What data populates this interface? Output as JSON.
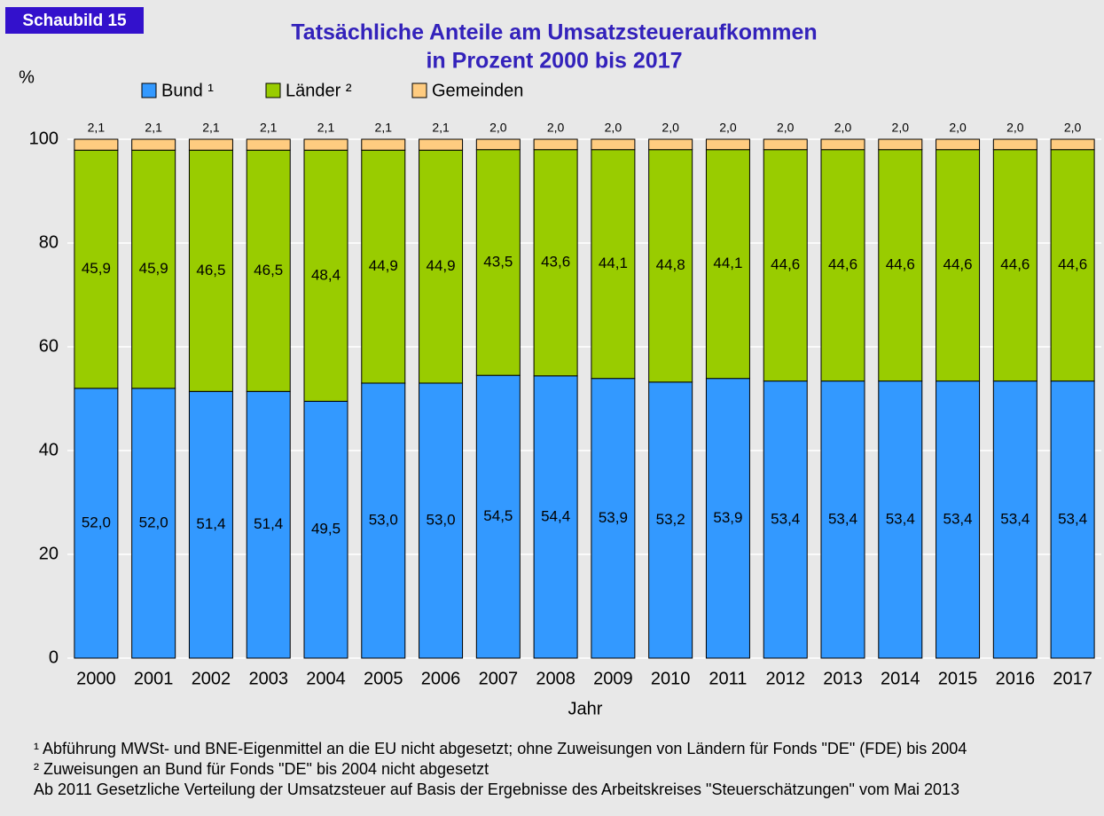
{
  "chart_data": {
    "type": "stacked_bar",
    "badge": "Schaubild 15",
    "title_lines": [
      "Tatsächliche Anteile am Umsatzsteueraufkommen",
      "in Prozent 2000 bis 2017"
    ],
    "y_label": "%",
    "x_label": "Jahr",
    "categories": [
      "2000",
      "2001",
      "2002",
      "2003",
      "2004",
      "2005",
      "2006",
      "2007",
      "2008",
      "2009",
      "2010",
      "2011",
      "2012",
      "2013",
      "2014",
      "2015",
      "2016",
      "2017"
    ],
    "series": [
      {
        "name": "Bund ¹",
        "color": "#3399ff",
        "values": [
          52.0,
          52.0,
          51.4,
          51.4,
          49.5,
          53.0,
          53.0,
          54.5,
          54.4,
          53.9,
          53.2,
          53.9,
          53.4,
          53.4,
          53.4,
          53.4,
          53.4,
          53.4
        ],
        "value_labels": [
          "52,0",
          "52,0",
          "51,4",
          "51,4",
          "49,5",
          "53,0",
          "53,0",
          "54,5",
          "54,4",
          "53,9",
          "53,2",
          "53,9",
          "53,4",
          "53,4",
          "53,4",
          "53,4",
          "53,4",
          "53,4"
        ]
      },
      {
        "name": "Länder ²",
        "color": "#99cc00",
        "values": [
          45.9,
          45.9,
          46.5,
          46.5,
          48.4,
          44.9,
          44.9,
          43.5,
          43.6,
          44.1,
          44.8,
          44.1,
          44.6,
          44.6,
          44.6,
          44.6,
          44.6,
          44.6
        ],
        "value_labels": [
          "45,9",
          "45,9",
          "46,5",
          "46,5",
          "48,4",
          "44,9",
          "44,9",
          "43,5",
          "43,6",
          "44,1",
          "44,8",
          "44,1",
          "44,6",
          "44,6",
          "44,6",
          "44,6",
          "44,6",
          "44,6"
        ]
      },
      {
        "name": "Gemeinden",
        "color": "#ffcc80",
        "values": [
          2.1,
          2.1,
          2.1,
          2.1,
          2.1,
          2.1,
          2.1,
          2.0,
          2.0,
          2.0,
          2.0,
          2.0,
          2.0,
          2.0,
          2.0,
          2.0,
          2.0,
          2.0
        ],
        "value_labels": [
          "2,1",
          "2,1",
          "2,1",
          "2,1",
          "2,1",
          "2,1",
          "2,1",
          "2,0",
          "2,0",
          "2,0",
          "2,0",
          "2,0",
          "2,0",
          "2,0",
          "2,0",
          "2,0",
          "2,0",
          "2,0"
        ]
      }
    ],
    "ylim": [
      0,
      100
    ],
    "yticks": [
      0,
      20,
      40,
      60,
      80,
      100
    ],
    "grid": true,
    "notes": [
      "¹ Abführung MWSt- und BNE-Eigenmittel an die EU nicht abgesetzt; ohne Zuweisungen von Ländern für Fonds \"DE\" (FDE) bis 2004",
      "² Zuweisungen an Bund für Fonds \"DE\" bis 2004 nicht abgesetzt",
      "Ab 2011 Gesetzliche Verteilung der Umsatzsteuer auf Basis der Ergebnisse des Arbeitskreises \"Steuerschätzungen\" vom Mai 2013"
    ]
  }
}
